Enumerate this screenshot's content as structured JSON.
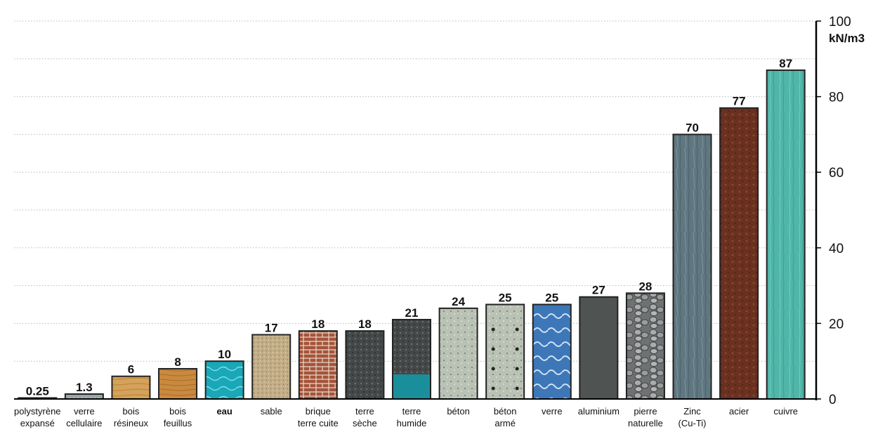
{
  "chart_data": {
    "type": "bar",
    "title": "",
    "xlabel": "",
    "ylabel": "kN/m3",
    "ylim": [
      0,
      100
    ],
    "yticks": [
      0,
      20,
      40,
      60,
      80,
      100
    ],
    "grid": true,
    "gridlines_step": 10,
    "axis_position": "right",
    "categories": [
      [
        "polystyrène",
        "expansé"
      ],
      [
        "verre",
        "cellulaire"
      ],
      [
        "bois",
        "résineux"
      ],
      [
        "bois",
        "feuillus"
      ],
      [
        "eau"
      ],
      [
        "sable"
      ],
      [
        "brique",
        "terre cuite"
      ],
      [
        "terre",
        "sèche"
      ],
      [
        "terre",
        "humide"
      ],
      [
        "béton"
      ],
      [
        "béton",
        "armé"
      ],
      [
        "verre"
      ],
      [
        "aluminium"
      ],
      [
        "pierre",
        "naturelle"
      ],
      [
        "Zinc",
        "(Cu-Ti)"
      ],
      [
        "acier"
      ],
      [
        "cuivre"
      ]
    ],
    "values": [
      0.25,
      1.3,
      6,
      8,
      10,
      17,
      18,
      18,
      21,
      24,
      25,
      25,
      27,
      28,
      70,
      77,
      87
    ],
    "value_labels": [
      "0.25",
      "1.3",
      "6",
      "8",
      "10",
      "17",
      "18",
      "18",
      "21",
      "24",
      "25",
      "25",
      "27",
      "28",
      "70",
      "77",
      "87"
    ],
    "bold_categories": [
      4
    ],
    "colors": [
      "#555555",
      "#9aa6a6",
      "#d4a25a",
      "#c98a3f",
      "#1aa7b7",
      "#c2ad87",
      "#a5543a",
      "#444848",
      "#3b3b3b",
      "#b9c2b5",
      "#a9b3a5",
      "#3d77b8",
      "#4f5352",
      "#8c8f90",
      "#5f7780",
      "#6a3020",
      "#4fb6a8"
    ]
  }
}
